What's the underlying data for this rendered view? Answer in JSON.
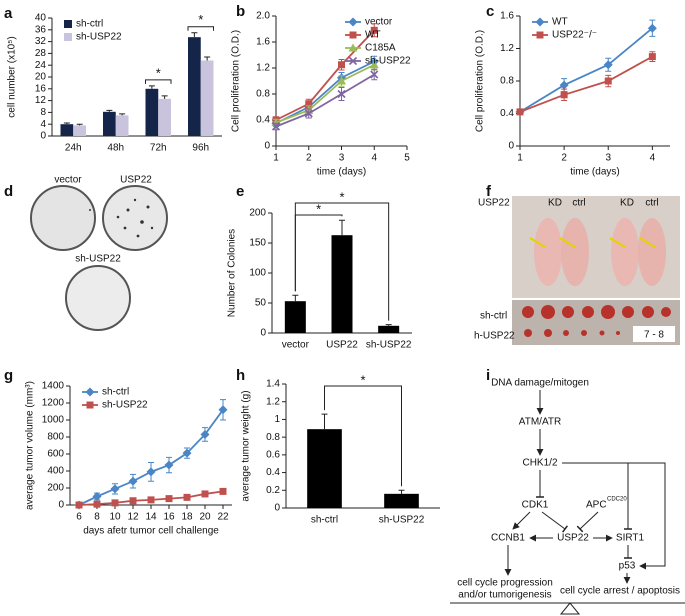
{
  "panel_letters": [
    "a",
    "b",
    "c",
    "d",
    "e",
    "f",
    "g",
    "h",
    "i"
  ],
  "chart_data": [
    {
      "type": "grouped-bar",
      "ylabel": "cell number (x10⁵)",
      "categories": [
        "24h",
        "48h",
        "72h",
        "96h"
      ],
      "series": [
        {
          "name": "sh-ctrl",
          "color": "#15254a",
          "values": [
            4,
            8.2,
            16,
            33.5
          ],
          "errors": [
            0.4,
            0.5,
            1,
            1.5
          ]
        },
        {
          "name": "sh-USP22",
          "color": "#c9c3dd",
          "values": [
            3.6,
            7,
            12.6,
            25.6
          ],
          "errors": [
            0.4,
            0.5,
            1,
            1.2
          ]
        }
      ],
      "ylim": [
        0,
        40
      ],
      "yticks": [
        0,
        4,
        8,
        12,
        16,
        20,
        24,
        28,
        32,
        36,
        40
      ],
      "legend": "upper left",
      "significance": [
        {
          "label": "*",
          "category": "72h"
        },
        {
          "label": "*",
          "category": "96h"
        }
      ]
    },
    {
      "type": "line",
      "ylabel": "Cell proliferation (O.D.)",
      "xlabel": "time (days)",
      "x": [
        1,
        2,
        3,
        4
      ],
      "series": [
        {
          "name": "vector",
          "color": "#4a86c5",
          "marker": "diamond",
          "values": [
            0.35,
            0.6,
            1.05,
            1.3
          ],
          "errors": [
            0.05,
            0.07,
            0.08,
            0.08
          ]
        },
        {
          "name": "WT",
          "color": "#c0504d",
          "marker": "square",
          "values": [
            0.4,
            0.65,
            1.25,
            1.78
          ],
          "errors": [
            0.05,
            0.07,
            0.08,
            0.1
          ]
        },
        {
          "name": "C185A",
          "color": "#9bbb59",
          "marker": "triangle",
          "values": [
            0.36,
            0.55,
            1.0,
            1.25
          ],
          "errors": [
            0.05,
            0.07,
            0.08,
            0.08
          ]
        },
        {
          "name": "sh-USP22",
          "color": "#8064a2",
          "marker": "cross",
          "values": [
            0.3,
            0.5,
            0.8,
            1.1
          ],
          "errors": [
            0.05,
            0.07,
            0.1,
            0.08
          ]
        }
      ],
      "xlim": [
        1,
        5
      ],
      "xticks": [
        1,
        2,
        3,
        4,
        5
      ],
      "ylim": [
        0,
        2
      ],
      "yticks": [
        0,
        0.4,
        0.8,
        1.2,
        1.6,
        {
          "value": 2,
          "label": "2.0"
        }
      ],
      "legend": "upper right"
    },
    {
      "type": "line",
      "ylabel": "Cell proliferation (O.D.)",
      "xlabel": "time (days)",
      "x": [
        1,
        2,
        3,
        4
      ],
      "series": [
        {
          "name": "WT",
          "color": "#4a86c5",
          "marker": "diamond",
          "values": [
            0.42,
            0.75,
            1.0,
            1.45
          ],
          "errors": [
            0.03,
            0.08,
            0.08,
            0.1
          ]
        },
        {
          "name": "USP22⁻/⁻",
          "color": "#c0504d",
          "marker": "square",
          "values": [
            0.42,
            0.63,
            0.8,
            1.1
          ],
          "errors": [
            0.03,
            0.07,
            0.07,
            0.06
          ]
        }
      ],
      "xlim": [
        1,
        4.4
      ],
      "xticks": [
        1,
        2,
        3,
        4
      ],
      "ylim": [
        0,
        1.6
      ],
      "yticks": [
        0,
        0.4,
        0.8,
        1.2,
        1.6
      ],
      "legend": "upper left"
    },
    {
      "type": "bar",
      "ylabel": "Number of Colonies",
      "categories": [
        "vector",
        "USP22",
        "sh-USP22"
      ],
      "values": [
        53,
        163,
        12
      ],
      "errors": [
        10,
        25,
        2
      ],
      "color": "#000000",
      "ylim": [
        0,
        200
      ],
      "yticks": [
        0,
        50,
        100,
        150,
        200
      ],
      "significance": [
        {
          "label": "*",
          "from": "vector",
          "to": "USP22"
        },
        {
          "label": "*",
          "from": "vector",
          "to": "sh-USP22"
        }
      ]
    },
    {
      "type": "line",
      "ylabel": "average tumor volume (mm³)",
      "xlabel": "days afetr tumor cell challenge",
      "x": [
        6,
        8,
        10,
        12,
        14,
        16,
        18,
        20,
        22
      ],
      "series": [
        {
          "name": "sh-ctrl",
          "color": "#4a86c5",
          "marker": "diamond",
          "values": [
            0,
            100,
            190,
            280,
            390,
            470,
            610,
            830,
            1120
          ],
          "errors": [
            10,
            40,
            60,
            80,
            110,
            90,
            60,
            80,
            120
          ]
        },
        {
          "name": "sh-USP22",
          "color": "#c0504d",
          "marker": "square",
          "values": [
            0,
            10,
            25,
            50,
            60,
            75,
            90,
            130,
            160
          ],
          "errors": [
            5,
            10,
            10,
            15,
            15,
            15,
            15,
            20,
            20
          ]
        }
      ],
      "xlim": [
        5,
        23
      ],
      "xticks": [
        6,
        8,
        10,
        12,
        14,
        16,
        18,
        20,
        22
      ],
      "ylim": [
        0,
        1400
      ],
      "yticks": [
        0,
        200,
        400,
        600,
        800,
        1000,
        1200,
        1400
      ],
      "legend": "upper left"
    },
    {
      "type": "bar",
      "ylabel": "average tumor weight (g)",
      "categories": [
        "sh-ctrl",
        "sh-USP22"
      ],
      "values": [
        0.89,
        0.16
      ],
      "errors": [
        0.17,
        0.04
      ],
      "color": "#000000",
      "ylim": [
        0,
        1.4
      ],
      "yticks": [
        0,
        0.2,
        0.4,
        0.6,
        0.8,
        1,
        1.2,
        1.4
      ],
      "significance": [
        {
          "label": "*",
          "from": "sh-ctrl",
          "to": "sh-USP22"
        }
      ]
    }
  ],
  "colony_photos": {
    "labels": [
      "vector",
      "USP22",
      "sh-USP22"
    ]
  },
  "mouse_photos": {
    "labels": [
      "USP22",
      "KD",
      "ctrl",
      "KD",
      "ctrl",
      "sh-ctrl",
      "h-USP22",
      "7 - 8"
    ]
  },
  "diagram": {
    "nodes": [
      "DNA damage/mitogen",
      "ATM/ATR",
      "CHK1/2",
      "CDK1",
      "APC",
      "CDC20",
      "CCNB1",
      "USP22",
      "SIRT1",
      "p53",
      "cell cycle progression",
      "and/or tumorigenesis",
      "cell cycle arrest / apoptosis"
    ]
  }
}
